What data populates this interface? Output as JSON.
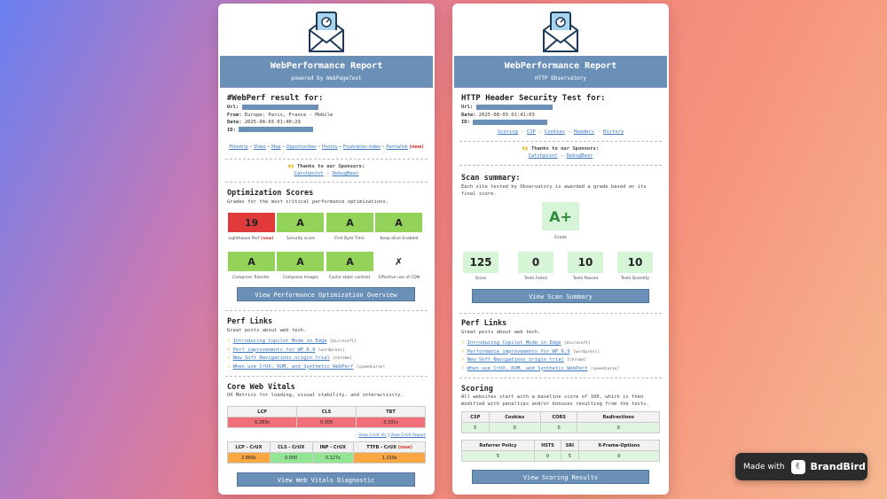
{
  "left": {
    "banner": {
      "title": "WebPerformance Report",
      "subtitle": "powered by WebPageTest"
    },
    "heading": "#WebPerf result for:",
    "meta": {
      "url_label": "Url:",
      "from_label": "From:",
      "from_value": "Europe: Paris, France - Mobile",
      "date_label": "Date:",
      "date_value": "2025-08-03 01:40:29",
      "id_label": "ID:"
    },
    "nav": [
      "Filmstrip",
      "Video",
      "Map",
      "Opportunities",
      "History",
      "Frustration index",
      "Permalink"
    ],
    "nav_new": "(new)",
    "sponsors": {
      "label": "🙌 Thanks to our Sponsors:",
      "items": [
        "Catchpoint",
        "DebugBear"
      ],
      "sep": "-"
    },
    "opt": {
      "title": "Optimization Scores",
      "desc": "Grades for the most critical performance optimizations.",
      "row1": [
        {
          "grade": "19",
          "label": "Lighthouse Perf",
          "new": "(new)",
          "color": "red"
        },
        {
          "grade": "A",
          "label": "Security score",
          "color": "green"
        },
        {
          "grade": "A",
          "label": "First Byte Time",
          "color": "green"
        },
        {
          "grade": "A",
          "label": "Keep-alive Enabled",
          "color": "green"
        }
      ],
      "row2": [
        {
          "grade": "A",
          "label": "Compress Transfer",
          "color": "green"
        },
        {
          "grade": "A",
          "label": "Compress Images",
          "color": "green"
        },
        {
          "grade": "A",
          "label": "Cache static content",
          "color": "green"
        },
        {
          "grade": "✗",
          "label": "Effective use of CDN",
          "color": "none"
        }
      ],
      "button": "View Performance Optimization Overview"
    },
    "perf_links": {
      "title": "Perf Links",
      "desc": "Great posts about web tech.",
      "items": [
        {
          "text": "Introducing Copilot Mode in Edge",
          "tag": "[microsoft]"
        },
        {
          "text": "Perf improvements for WP 6.9",
          "tag": "[wordpress]"
        },
        {
          "text": "New Soft Navigations origin trial",
          "tag": "[chrome]"
        },
        {
          "text": "When use CrUX, RUM, and Synthetic WebPerf",
          "tag": "[speedcurve]"
        }
      ]
    },
    "cwv": {
      "title": "Core Web Vitals",
      "desc": "UX Metrics for loading, visual stability, and interactivity.",
      "headers": [
        "LCP",
        "CLS",
        "TBT"
      ],
      "values": [
        "6.283s",
        "0.305",
        "3.331s"
      ],
      "crux_links": [
        "View CrUX Vis",
        "View CrUX Report"
      ],
      "crux_sep": "|",
      "crux_headers": [
        "LCP - CrUX",
        "CLS - CrUX",
        "INP - CrUX",
        "TTFB - CrUX"
      ],
      "crux_values": [
        "2.869s",
        "0.000",
        "0.127s",
        "1.159s"
      ],
      "button": "View Web Vitals Diagnostic"
    }
  },
  "right": {
    "banner": {
      "title": "WebPerformance Report",
      "subtitle": "HTTP Observatory"
    },
    "heading": "HTTP Header Security Test for:",
    "meta": {
      "url_label": "Url:",
      "date_label": "Date:",
      "date_value": "2025-08-03 01:41:03",
      "id_label": "ID:"
    },
    "nav": [
      "Scoring",
      "CSP",
      "Cookies",
      "Headers",
      "History"
    ],
    "nav_sep": "-",
    "sponsors": {
      "label": "🙌 Thanks to our Sponsors:",
      "items": [
        "Catchpoint",
        "DebugBear"
      ],
      "sep": "-"
    },
    "scan": {
      "title": "Scan summary:",
      "desc": "Each site tested by Observatory is awarded a grade based on its final score.",
      "grade": "A+",
      "grade_label": "Grade",
      "stats": [
        {
          "value": "125",
          "label": "Score"
        },
        {
          "value": "0",
          "label": "Tests Failed"
        },
        {
          "value": "10",
          "label": "Tests Passed"
        },
        {
          "value": "10",
          "label": "Tests Quantity"
        }
      ],
      "button": "View Scan Summary"
    },
    "perf_links": {
      "title": "Perf Links",
      "desc": "Great posts about web tech.",
      "items": [
        {
          "text": "Introducing Copilot Mode in Edge",
          "tag": "[microsoft]"
        },
        {
          "text": "Performance improvements for WP 6.9",
          "tag": "[wordpress]"
        },
        {
          "text": "New Soft Navigations origin trial",
          "tag": "[chrome]"
        },
        {
          "text": "When use CrUX, RUM, and Synthetic WebPerf",
          "tag": "[speedcurve]"
        }
      ]
    },
    "scoring": {
      "title": "Scoring",
      "desc": "All websites start with a baseline score of 100, which is then modified with penalties and/or bonuses resulting from the tests.",
      "headers1": [
        "CSP",
        "Cookies",
        "CORS",
        "Redirections"
      ],
      "values1": [
        "5",
        "0",
        "0",
        "0"
      ],
      "headers2": [
        "Referrer Policy",
        "HSTS",
        "SRI",
        "X-Frame-Options"
      ],
      "values2": [
        "5",
        "0",
        "5",
        "0"
      ],
      "button": "View Scoring Results"
    }
  },
  "badge": {
    "made_with": "Made with",
    "brand": "BrandBird"
  },
  "colors": {
    "banner": "#6b90b8",
    "red": "#e03a3a",
    "green": "#93d35a",
    "link": "#3a77c4"
  }
}
